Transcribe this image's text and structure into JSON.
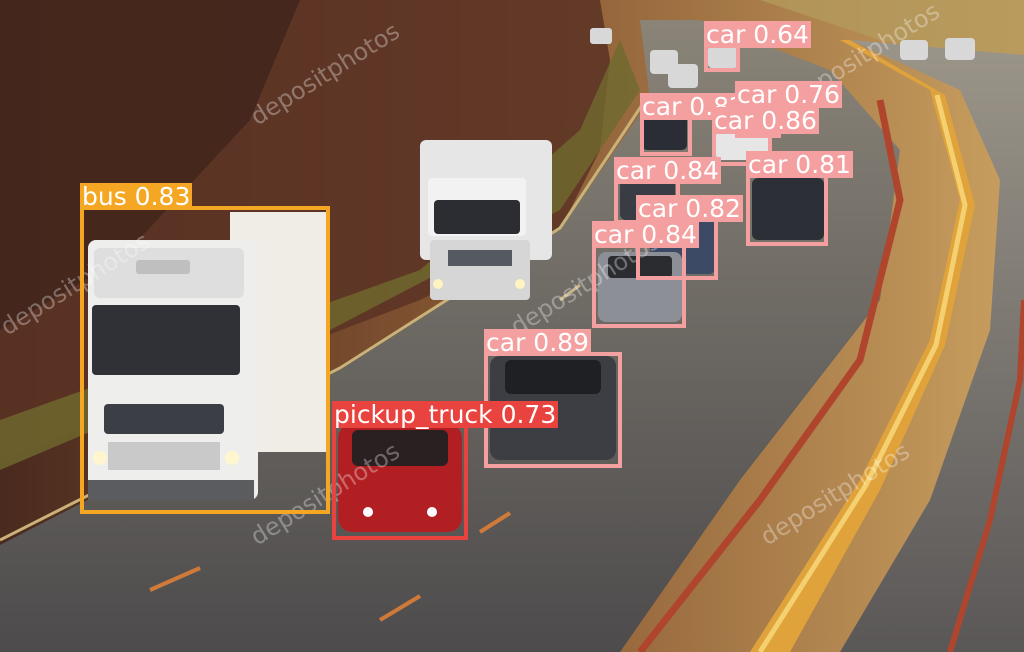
{
  "scene": {
    "description_icon": "highway-photo",
    "watermark": "depositphotos"
  },
  "colors": {
    "bus": "#f5a623",
    "car": "#f5a0a0",
    "pickup_truck": "#e8433f"
  },
  "detections": [
    {
      "label": "car 0.64",
      "class": "car",
      "score": 0.64
    },
    {
      "label": "car 0.82",
      "class": "car",
      "score": 0.82
    },
    {
      "label": "car 0.76",
      "class": "car",
      "score": 0.76
    },
    {
      "label": "car 0.86",
      "class": "car",
      "score": 0.86
    },
    {
      "label": "car 0.84",
      "class": "car",
      "score": 0.84
    },
    {
      "label": "car 0.81",
      "class": "car",
      "score": 0.81
    },
    {
      "label": "car 0.82",
      "class": "car",
      "score": 0.82
    },
    {
      "label": "car 0.84",
      "class": "car",
      "score": 0.84
    },
    {
      "label": "car 0.89",
      "class": "car",
      "score": 0.89
    },
    {
      "label": "pickup_truck 0.73",
      "class": "pickup_truck",
      "score": 0.73
    },
    {
      "label": "bus 0.83",
      "class": "bus",
      "score": 0.83
    }
  ]
}
